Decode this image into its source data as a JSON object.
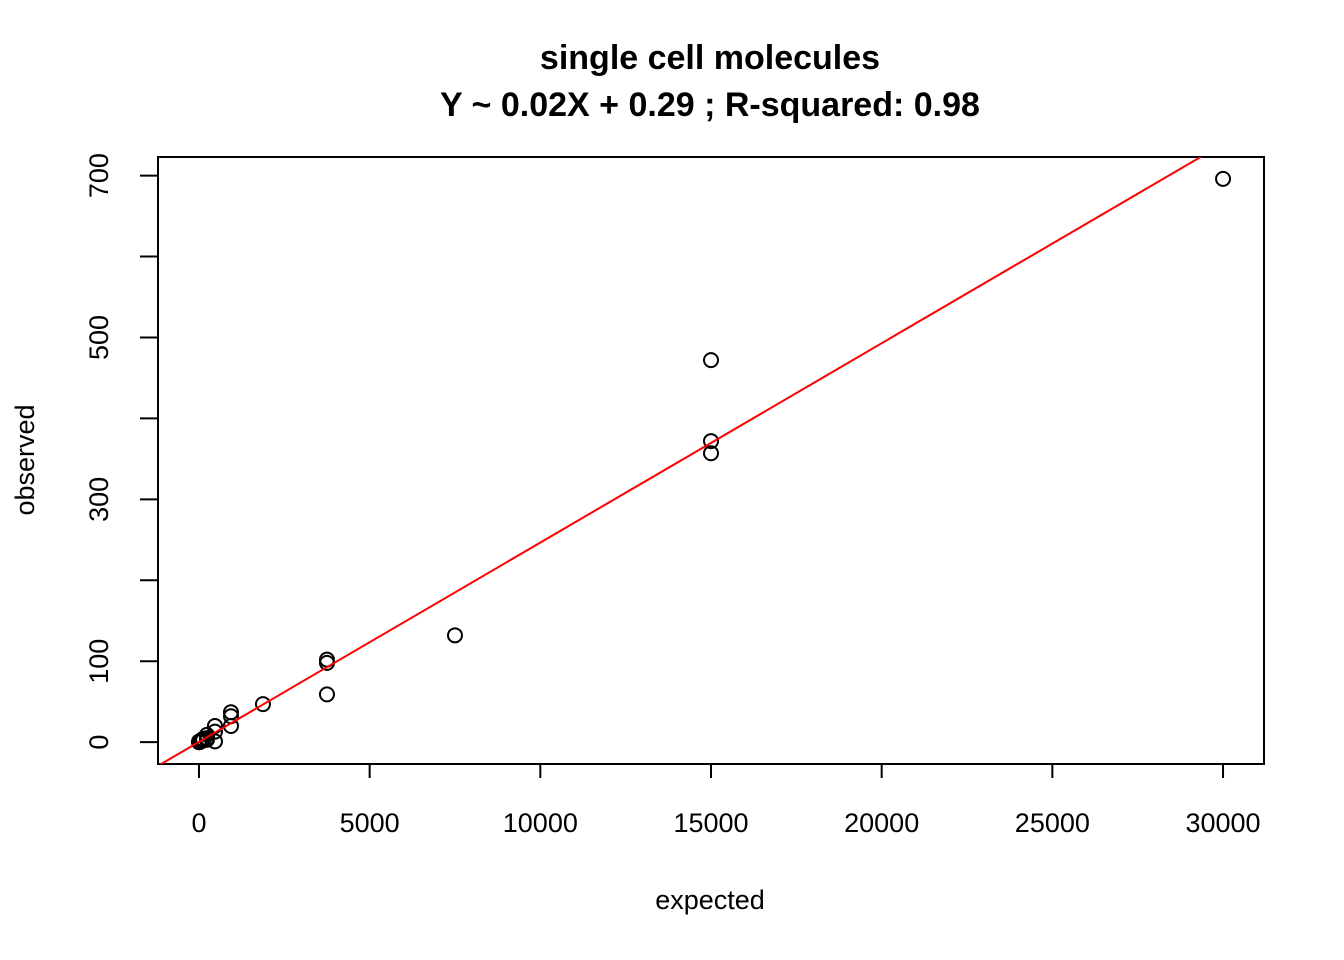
{
  "chart_data": {
    "type": "scatter",
    "title": "single cell molecules",
    "subtitle": "Y ~ 0.02X + 0.29 ; R-squared: 0.98",
    "xlabel": "expected",
    "ylabel": "observed",
    "xlim": [
      -1200,
      31200
    ],
    "ylim": [
      -27,
      723
    ],
    "x_ticks": [
      0,
      5000,
      10000,
      15000,
      20000,
      25000,
      30000
    ],
    "x_tick_labels": [
      "0",
      "5000",
      "10000",
      "15000",
      "20000",
      "25000",
      "30000"
    ],
    "y_ticks": [
      0,
      100,
      200,
      300,
      400,
      500,
      600,
      700
    ],
    "y_tick_labels": [
      "0",
      "100",
      "",
      "300",
      "",
      "500",
      "",
      "700"
    ],
    "grid": false,
    "fit_line": {
      "slope": 0.02463,
      "intercept": 0.29,
      "color": "#ff0000"
    },
    "point_color": "#000000",
    "series": [
      {
        "points": [
          {
            "x": 30000,
            "y": 696
          },
          {
            "x": 15000,
            "y": 472
          },
          {
            "x": 15000,
            "y": 372
          },
          {
            "x": 15000,
            "y": 357
          },
          {
            "x": 7500,
            "y": 132
          },
          {
            "x": 3750,
            "y": 102
          },
          {
            "x": 3750,
            "y": 98
          },
          {
            "x": 3750,
            "y": 59
          },
          {
            "x": 1875,
            "y": 47
          },
          {
            "x": 938,
            "y": 37
          },
          {
            "x": 938,
            "y": 32
          },
          {
            "x": 938,
            "y": 20
          },
          {
            "x": 469,
            "y": 20
          },
          {
            "x": 469,
            "y": 13
          },
          {
            "x": 469,
            "y": 1
          },
          {
            "x": 234,
            "y": 9
          },
          {
            "x": 234,
            "y": 5
          },
          {
            "x": 234,
            "y": 3
          },
          {
            "x": 117,
            "y": 4
          },
          {
            "x": 117,
            "y": 2
          },
          {
            "x": 59,
            "y": 2
          },
          {
            "x": 59,
            "y": 1
          },
          {
            "x": 29,
            "y": 1
          },
          {
            "x": 15,
            "y": 0
          },
          {
            "x": 7,
            "y": 1
          },
          {
            "x": 4,
            "y": 0
          },
          {
            "x": 2,
            "y": 0
          },
          {
            "x": 1,
            "y": 0
          }
        ]
      }
    ]
  }
}
